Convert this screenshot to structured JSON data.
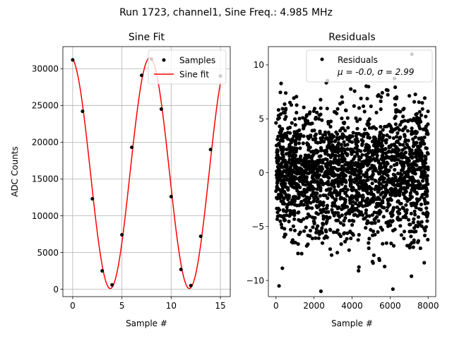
{
  "figure_title": "Run 1723, channel1, Sine Freq.: 4.985 MHz",
  "chart_data": [
    {
      "type": "scatter+line",
      "title": "Sine Fit",
      "xlabel": "Sample #",
      "ylabel": "ADC Counts",
      "xlim": [
        -1.0,
        16.0
      ],
      "ylim": [
        -1000,
        33000
      ],
      "xticks": [
        0,
        5,
        10,
        15
      ],
      "yticks": [
        0,
        5000,
        10000,
        15000,
        20000,
        25000,
        30000
      ],
      "grid": true,
      "legend_position": "top-right",
      "series": [
        {
          "name": "Samples",
          "kind": "scatter",
          "color": "#000000",
          "x": [
            0,
            1,
            2,
            3,
            4,
            5,
            6,
            7,
            8,
            9,
            10,
            11,
            12,
            13,
            14,
            15
          ],
          "y": [
            31200,
            24200,
            12300,
            2500,
            600,
            7400,
            19300,
            29100,
            31300,
            24500,
            12600,
            2700,
            500,
            7200,
            19000,
            29000
          ]
        },
        {
          "name": "Sine fit",
          "kind": "line",
          "color": "#ff0000",
          "model": {
            "offset": 15800,
            "amplitude": 15700,
            "period": 8.03,
            "phase_x": -0.2,
            "x_range": [
              0,
              15
            ]
          }
        }
      ]
    },
    {
      "type": "scatter",
      "title": "Residuals",
      "xlabel": "Sample #",
      "ylabel": "",
      "xlim": [
        -400,
        8400
      ],
      "ylim": [
        -11.5,
        11.7
      ],
      "xticks": [
        0,
        2000,
        4000,
        6000,
        8000
      ],
      "yticks": [
        -10,
        -5,
        0,
        5,
        10
      ],
      "grid": false,
      "legend_position": "top-right",
      "series": [
        {
          "name": "Residuals",
          "color": "#000000",
          "n_points": 8000,
          "mean": -0.0,
          "sigma": 2.99,
          "legend_text": [
            "Residuals",
            "μ = -0.0, σ = 2.99"
          ]
        }
      ]
    }
  ]
}
